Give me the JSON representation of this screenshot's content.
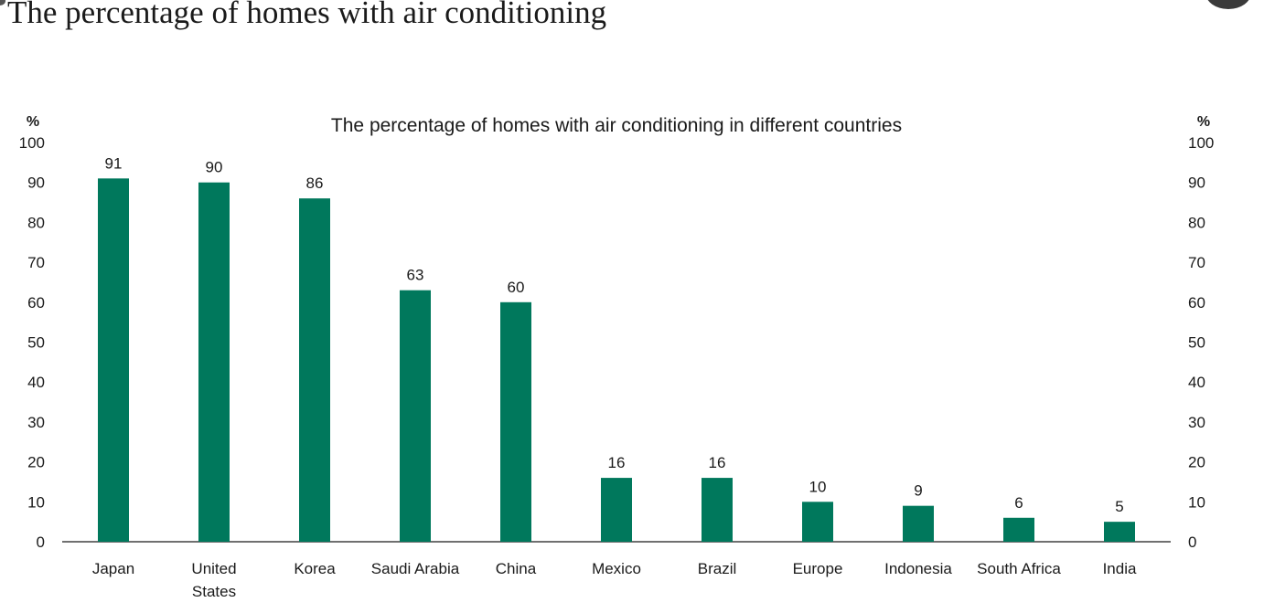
{
  "page": {
    "title": "The percentage of homes with air conditioning"
  },
  "chart_data": {
    "type": "bar",
    "title": "The percentage of homes with air conditioning in different countries",
    "ylabel_left": "%",
    "ylabel_right": "%",
    "ylim": [
      0,
      100
    ],
    "yticks": [
      0,
      10,
      20,
      30,
      40,
      50,
      60,
      70,
      80,
      90,
      100
    ],
    "categories": [
      [
        "Japan"
      ],
      [
        "United",
        "States"
      ],
      [
        "Korea"
      ],
      [
        "Saudi Arabia"
      ],
      [
        "China"
      ],
      [
        "Mexico"
      ],
      [
        "Brazil"
      ],
      [
        "Europe"
      ],
      [
        "Indonesia"
      ],
      [
        "South Africa"
      ],
      [
        "India"
      ]
    ],
    "values": [
      91,
      90,
      86,
      63,
      60,
      16,
      16,
      10,
      9,
      6,
      5
    ],
    "bar_color": "#00785c",
    "grid": false,
    "legend": "none",
    "secondary_y_axis": true
  }
}
